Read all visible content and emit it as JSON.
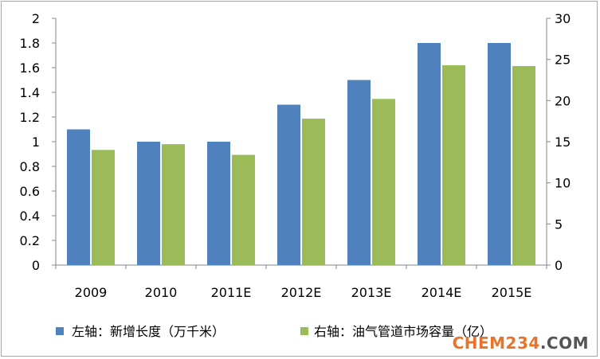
{
  "chart_data": {
    "type": "bar",
    "categories": [
      "2009",
      "2010",
      "2011E",
      "2012E",
      "2013E",
      "2014E",
      "2015E"
    ],
    "series": [
      {
        "name": "左轴：新增长度（万千米）",
        "axis": "left",
        "color": "#4f81bd",
        "values": [
          1.1,
          1.0,
          1.0,
          1.3,
          1.5,
          1.8,
          1.8
        ]
      },
      {
        "name": "右轴：油气管道市场容量（亿）",
        "axis": "right",
        "color": "#9bbb59",
        "values": [
          14.0,
          14.7,
          13.4,
          17.8,
          20.2,
          24.3,
          24.2
        ]
      }
    ],
    "y_left": {
      "min": 0,
      "max": 2,
      "step": 0.2,
      "ticks": [
        "0",
        "0.2",
        "0.4",
        "0.6",
        "0.8",
        "1",
        "1.2",
        "1.4",
        "1.6",
        "1.8",
        "2"
      ]
    },
    "y_right": {
      "min": 0,
      "max": 30,
      "step": 5,
      "ticks": [
        "0",
        "5",
        "10",
        "15",
        "20",
        "25",
        "30"
      ]
    },
    "grid": false,
    "legend_position": "bottom-left"
  },
  "watermark": {
    "text": "CHEM234",
    "suffix": ".COM",
    "color": "#e8742a",
    "suffix_color": "#555555"
  }
}
